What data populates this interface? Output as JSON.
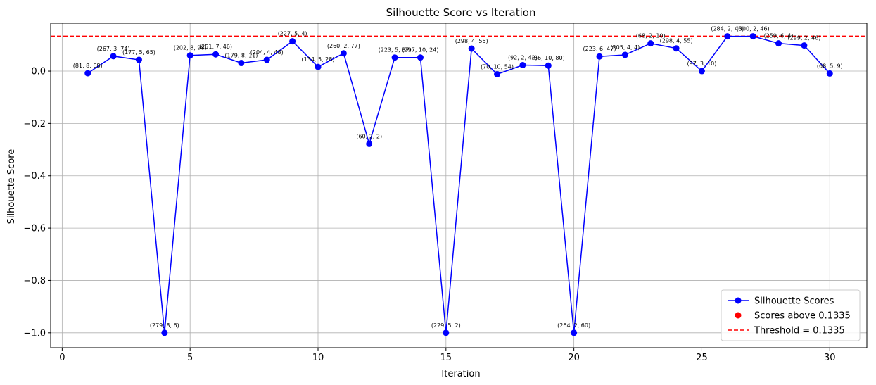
{
  "chart_data": {
    "type": "line",
    "title": "Silhouette Score vs Iteration",
    "xlabel": "Iteration",
    "ylabel": "Silhouette Score",
    "xlim": [
      -0.45,
      31.45
    ],
    "ylim": [
      -1.057,
      0.183
    ],
    "xticks": [
      0,
      5,
      10,
      15,
      20,
      25,
      30
    ],
    "yticks": [
      -1.0,
      -0.8,
      -0.6,
      -0.4,
      -0.2,
      0.0
    ],
    "ytick_labels": [
      "−1.0",
      "−0.8",
      "−0.6",
      "−0.4",
      "−0.2",
      "0.0"
    ],
    "grid": true,
    "legend_position": "lower-right",
    "threshold": 0.1335,
    "series": [
      {
        "name": "Silhouette Scores",
        "color": "#0000ff",
        "marker": "circle",
        "x": [
          1,
          2,
          3,
          4,
          5,
          6,
          7,
          8,
          9,
          10,
          11,
          12,
          13,
          14,
          15,
          16,
          17,
          18,
          19,
          20,
          21,
          22,
          23,
          24,
          25,
          26,
          27,
          28,
          29,
          30
        ],
        "y": [
          -0.008,
          0.057,
          0.043,
          -1.0,
          0.06,
          0.064,
          0.031,
          0.043,
          0.114,
          0.016,
          0.068,
          -0.278,
          0.052,
          0.052,
          -1.0,
          0.086,
          -0.012,
          0.023,
          0.021,
          -1.0,
          0.056,
          0.062,
          0.106,
          0.087,
          0.0,
          0.133,
          0.133,
          0.106,
          0.098,
          -0.009
        ],
        "labels": [
          "(81, 8, 68)",
          "(267, 3, 74)",
          "(177, 5, 65)",
          "(279, 8, 6)",
          "(202, 8, 98)",
          "(251, 7, 46)",
          "(179, 8, 11)",
          "(204, 4, 48)",
          "(227, 5, 4)",
          "(134, 5, 28)",
          "(260, 2, 77)",
          "(60, 2, 2)",
          "(223, 5, 37)",
          "(297, 10, 24)",
          "(229, 5, 2)",
          "(298, 4, 55)",
          "(70, 10, 54)",
          "(92, 2, 42)",
          "(66, 10, 80)",
          "(264, 2, 60)",
          "(223, 6, 47)",
          "(205, 4, 4)",
          "(68, 2, 10)",
          "(298, 4, 55)",
          "(97, 3, 10)",
          "(284, 2, 46)",
          "(300, 2, 46)",
          "(259, 6, 4)",
          "(299, 2, 46)",
          "(68, 5, 9)"
        ]
      }
    ],
    "legend": [
      {
        "label": "Silhouette Scores",
        "kind": "line-marker",
        "color": "#0000ff"
      },
      {
        "label": "Scores above 0.1335",
        "kind": "scatter",
        "color": "#ff0000"
      },
      {
        "label": "Threshold = 0.1335",
        "kind": "dashed-line",
        "color": "#ff0000"
      }
    ],
    "colors": {
      "line": "#0000ff",
      "threshold": "#ff0000",
      "grid": "#b0b0b0",
      "axes": "#000000"
    }
  }
}
